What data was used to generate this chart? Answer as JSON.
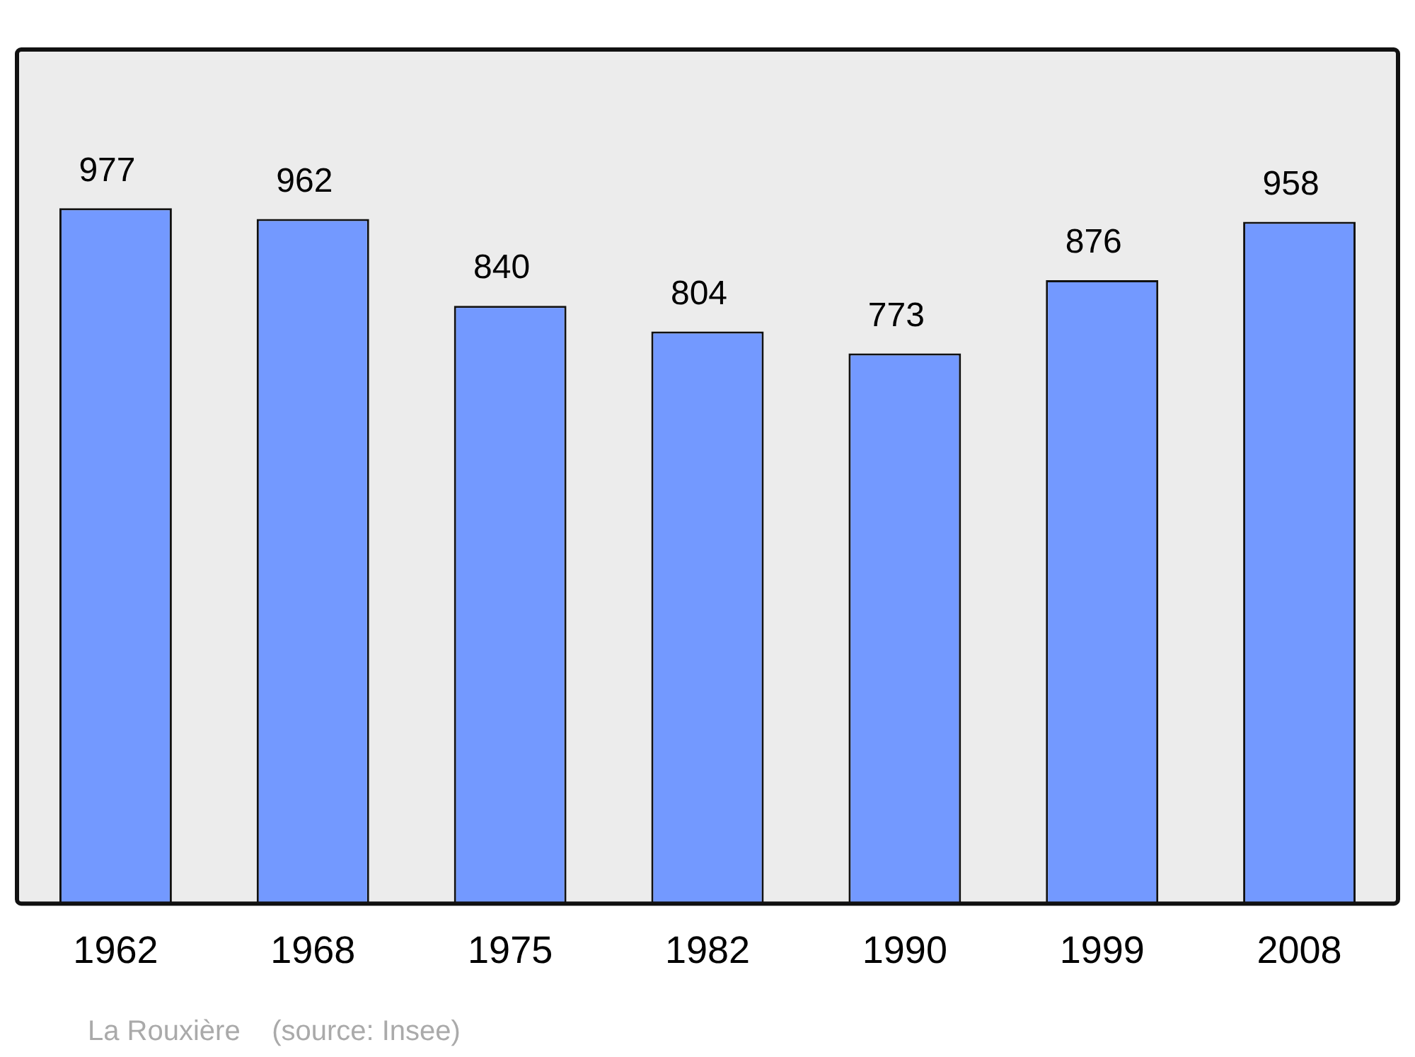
{
  "chart_data": {
    "type": "bar",
    "categories": [
      "1962",
      "1968",
      "1975",
      "1982",
      "1990",
      "1999",
      "2008"
    ],
    "values": [
      977,
      962,
      840,
      804,
      773,
      876,
      958
    ],
    "color": "#7399ff",
    "data_labels": true,
    "grid": false,
    "legend": false,
    "annotations": [
      "La Rouxière    (source: Insee)"
    ]
  }
}
